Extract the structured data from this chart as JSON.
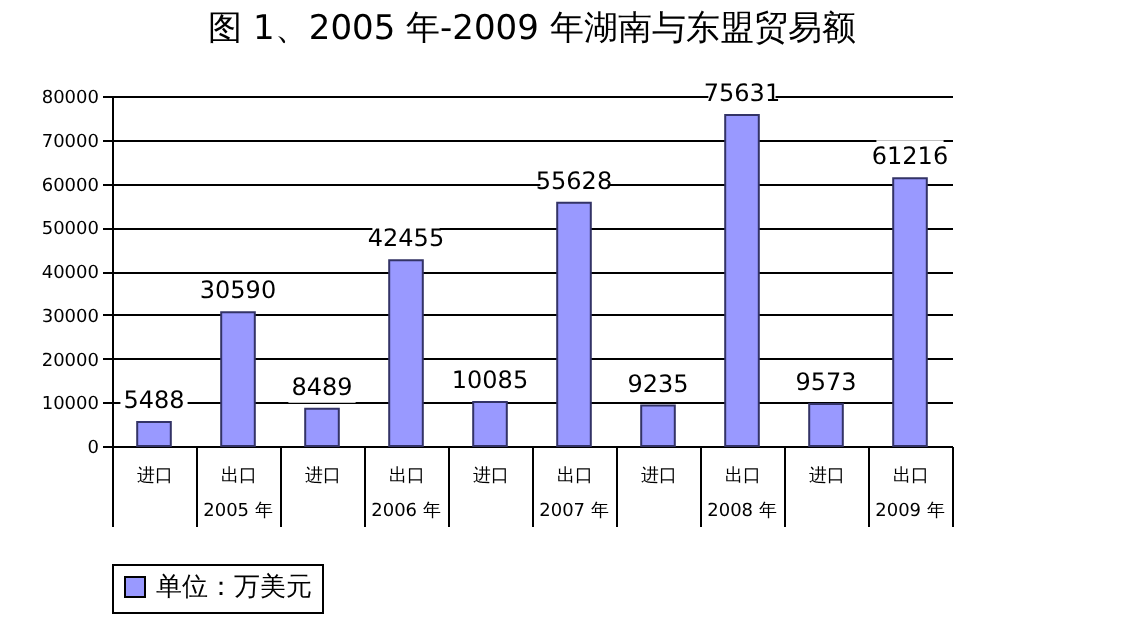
{
  "chart_data": {
    "type": "bar",
    "title": "图 1、2005 年-2009 年湖南与东盟贸易额",
    "categories": [
      "进口",
      "出口",
      "进口",
      "出口",
      "进口",
      "出口",
      "进口",
      "出口",
      "进口",
      "出口"
    ],
    "series": [
      {
        "name": "单位：万美元",
        "color": "#9999ff",
        "values": [
          5488,
          30590,
          8489,
          42455,
          10085,
          55628,
          9235,
          75631,
          9573,
          61216
        ]
      }
    ],
    "annotations": [
      "2005 年",
      "2006 年",
      "2007 年",
      "2008 年",
      "2009 年"
    ],
    "ylim": [
      0,
      80000
    ],
    "yticks": [
      0,
      10000,
      20000,
      30000,
      40000,
      50000,
      60000,
      70000,
      80000
    ],
    "grid": "y",
    "legend": "bottom",
    "data_labels": true
  }
}
